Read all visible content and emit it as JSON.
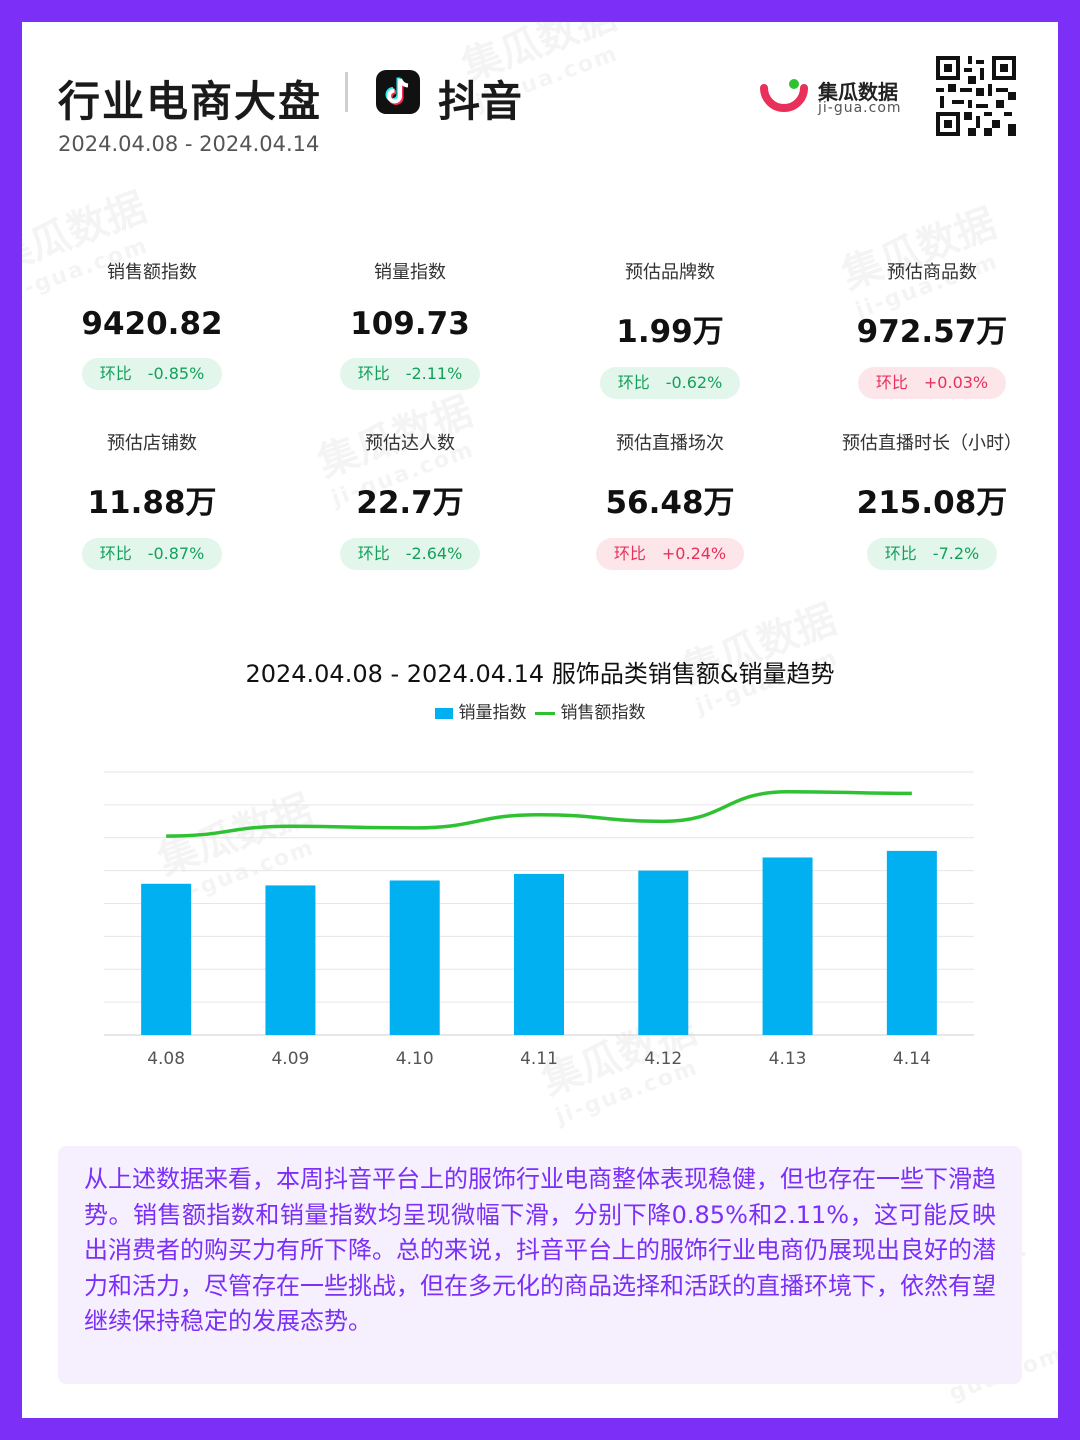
{
  "header": {
    "title": "行业电商大盘",
    "platform": "抖音",
    "date_range": "2024.04.08 - 2024.04.14",
    "brand_name": "集瓜数据",
    "brand_url": "ji-gua.com"
  },
  "metrics": [
    {
      "label": "销售额指数",
      "value": "9420.82",
      "change_label": "环比",
      "change": "-0.85%",
      "direction": "down"
    },
    {
      "label": "销量指数",
      "value": "109.73",
      "change_label": "环比",
      "change": "-2.11%",
      "direction": "down"
    },
    {
      "label": "预估品牌数",
      "value": "1.99万",
      "change_label": "环比",
      "change": "-0.62%",
      "direction": "down"
    },
    {
      "label": "预估商品数",
      "value": "972.57万",
      "change_label": "环比",
      "change": "+0.03%",
      "direction": "up"
    },
    {
      "label": "预估店铺数",
      "value": "11.88万",
      "change_label": "环比",
      "change": "-0.87%",
      "direction": "down"
    },
    {
      "label": "预估达人数",
      "value": "22.7万",
      "change_label": "环比",
      "change": "-2.64%",
      "direction": "down"
    },
    {
      "label": "预估直播场次",
      "value": "56.48万",
      "change_label": "环比",
      "change": "+0.24%",
      "direction": "up"
    },
    {
      "label": "预估直播时长（小时）",
      "value": "215.08万",
      "change_label": "环比",
      "change": "-7.2%",
      "direction": "down"
    }
  ],
  "chart_data": {
    "type": "bar",
    "title": "2024.04.08 - 2024.04.14 服饰品类销售额&销量趋势",
    "categories": [
      "4.08",
      "4.09",
      "4.10",
      "4.11",
      "4.12",
      "4.13",
      "4.14"
    ],
    "series": [
      {
        "name": "销量指数",
        "type": "bar",
        "color": "#00B0F0",
        "values": [
          4.6,
          4.55,
          4.7,
          4.9,
          5.0,
          5.4,
          5.6
        ]
      },
      {
        "name": "销售额指数",
        "type": "line",
        "color": "#2EC233",
        "values": [
          6.05,
          6.35,
          6.3,
          6.7,
          6.5,
          7.4,
          7.35
        ]
      }
    ],
    "ylim": [
      0,
      8
    ],
    "grid": true,
    "legend": "top-center"
  },
  "summary": "从上述数据来看，本周抖音平台上的服饰行业电商整体表现稳健，但也存在一些下滑趋势。销售额指数和销量指数均呈现微幅下滑，分别下降0.85%和2.11%，这可能反映出消费者的购买力有所下降。总的来说，抖音平台上的服饰行业电商仍展现出良好的潜力和活力，尽管存在一些挑战，但在多元化的商品选择和活跃的直播环境下，依然有望继续保持稳定的发展态势。"
}
